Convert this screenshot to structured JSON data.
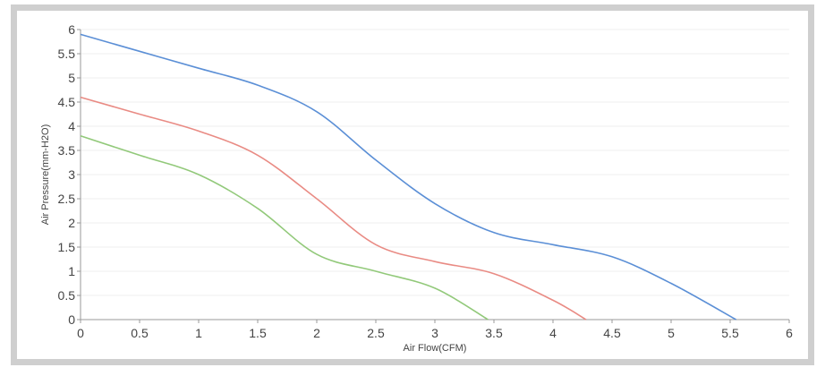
{
  "chart_data": {
    "type": "line",
    "title": "",
    "xlabel": "Air Flow(CFM)",
    "ylabel": "Air Pressure(mm-H2O)",
    "xlim": [
      0,
      6
    ],
    "ylim": [
      0,
      6
    ],
    "x_ticks": [
      "0",
      "0.5",
      "1",
      "1.5",
      "2",
      "2.5",
      "3",
      "3.5",
      "4",
      "4.5",
      "5",
      "5.5",
      "6"
    ],
    "y_ticks": [
      "0",
      "0.5",
      "1",
      "1.5",
      "2",
      "2.5",
      "3",
      "3.5",
      "4",
      "4.5",
      "5",
      "5.5",
      "6"
    ],
    "grid": "horizontal-light",
    "series": [
      {
        "color": "#5b8fd6",
        "x": [
          0,
          0.5,
          1,
          1.5,
          2,
          2.5,
          3,
          3.5,
          4,
          4.5,
          5,
          5.55
        ],
        "y": [
          5.9,
          5.55,
          5.2,
          4.85,
          4.3,
          3.3,
          2.4,
          1.8,
          1.55,
          1.3,
          0.75,
          0.0
        ]
      },
      {
        "color": "#e98b84",
        "x": [
          0,
          0.5,
          1,
          1.5,
          2,
          2.5,
          3,
          3.5,
          4,
          4.28
        ],
        "y": [
          4.6,
          4.25,
          3.9,
          3.4,
          2.5,
          1.55,
          1.2,
          0.95,
          0.4,
          0.0
        ]
      },
      {
        "color": "#92c97a",
        "x": [
          0,
          0.5,
          1,
          1.5,
          2,
          2.5,
          3,
          3.45
        ],
        "y": [
          3.8,
          3.4,
          3.0,
          2.3,
          1.35,
          1.0,
          0.65,
          0.0
        ]
      }
    ]
  }
}
